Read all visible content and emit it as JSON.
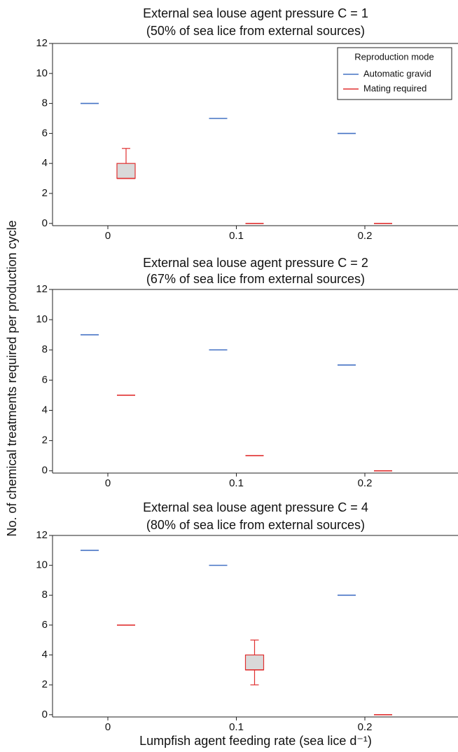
{
  "axis_labels": {
    "ylabel": "No. of chemical treatments required per production cycle",
    "xlabel": "Lumpfish agent feeding rate (sea lice d⁻¹)"
  },
  "chart_data": [
    {
      "type": "box",
      "title": "External sea louse agent pressure C = 1",
      "subtitle": "(50% of sea lice from external sources)",
      "categories": [
        "0",
        "0.1",
        "0.2"
      ],
      "ylim": [
        -0.15,
        12
      ],
      "yticks": [
        0,
        2,
        4,
        6,
        8,
        10,
        12
      ],
      "legend": "upper right",
      "legend_title": "Reproduction mode",
      "series": [
        {
          "name": "Automatic gravid",
          "color": "#4472c4",
          "values": [
            [
              8,
              8,
              8,
              8,
              8
            ],
            [
              7,
              7,
              7,
              7,
              7
            ],
            [
              6,
              6,
              6,
              6,
              6
            ]
          ]
        },
        {
          "name": "Mating required",
          "color": "#e03030",
          "values": [
            [
              3,
              3,
              3,
              4,
              5
            ],
            [
              0,
              0,
              0,
              0,
              0
            ],
            [
              0,
              0,
              0,
              0,
              0
            ]
          ]
        }
      ]
    },
    {
      "type": "box",
      "title": "External sea louse agent pressure C = 2",
      "subtitle": "(67% of sea lice from external sources)",
      "categories": [
        "0",
        "0.1",
        "0.2"
      ],
      "ylim": [
        -0.15,
        12
      ],
      "yticks": [
        0,
        2,
        4,
        6,
        8,
        10,
        12
      ],
      "series": [
        {
          "color": "#4472c4",
          "values": [
            [
              9,
              9,
              9,
              9,
              9
            ],
            [
              8,
              8,
              8,
              8,
              8
            ],
            [
              7,
              7,
              7,
              7,
              7
            ]
          ]
        },
        {
          "color": "#e03030",
          "values": [
            [
              5,
              5,
              5,
              5,
              5
            ],
            [
              1,
              1,
              1,
              1,
              1
            ],
            [
              0,
              0,
              0,
              0,
              0
            ]
          ]
        }
      ]
    },
    {
      "type": "box",
      "title": "External sea louse agent pressure C = 4",
      "subtitle": "(80% of sea lice from external sources)",
      "categories": [
        "0",
        "0.1",
        "0.2"
      ],
      "ylim": [
        -0.15,
        12
      ],
      "yticks": [
        0,
        2,
        4,
        6,
        8,
        10,
        12
      ],
      "series": [
        {
          "color": "#4472c4",
          "values": [
            [
              11,
              11,
              11,
              11,
              11
            ],
            [
              10,
              10,
              10,
              10,
              10
            ],
            [
              8,
              8,
              8,
              8,
              8
            ]
          ]
        },
        {
          "color": "#e03030",
          "values": [
            [
              6,
              6,
              6,
              6,
              6
            ],
            [
              2,
              3,
              3,
              4,
              5
            ],
            [
              0,
              0,
              0,
              0,
              0
            ]
          ]
        }
      ]
    }
  ]
}
